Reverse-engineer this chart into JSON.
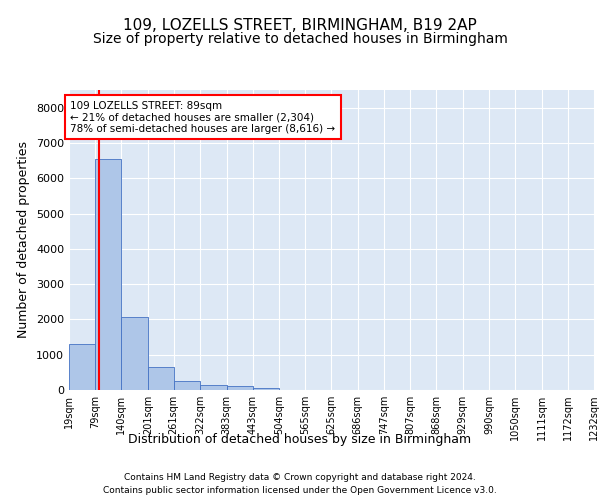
{
  "title1": "109, LOZELLS STREET, BIRMINGHAM, B19 2AP",
  "title2": "Size of property relative to detached houses in Birmingham",
  "xlabel": "Distribution of detached houses by size in Birmingham",
  "ylabel": "Number of detached properties",
  "footer1": "Contains HM Land Registry data © Crown copyright and database right 2024.",
  "footer2": "Contains public sector information licensed under the Open Government Licence v3.0.",
  "annotation_title": "109 LOZELLS STREET: 89sqm",
  "annotation_line1": "← 21% of detached houses are smaller (2,304)",
  "annotation_line2": "78% of semi-detached houses are larger (8,616) →",
  "bin_edges": [
    19,
    79,
    140,
    201,
    261,
    322,
    383,
    443,
    504,
    565,
    625,
    686,
    747,
    807,
    868,
    929,
    990,
    1050,
    1111,
    1172,
    1232
  ],
  "bar_heights": [
    1300,
    6550,
    2080,
    640,
    250,
    130,
    100,
    70,
    0,
    0,
    0,
    0,
    0,
    0,
    0,
    0,
    0,
    0,
    0,
    0
  ],
  "bar_color": "#aec6e8",
  "bar_edge_color": "#4472c4",
  "red_line_x": 89,
  "ylim": [
    0,
    8500
  ],
  "yticks": [
    0,
    1000,
    2000,
    3000,
    4000,
    5000,
    6000,
    7000,
    8000
  ],
  "bg_color": "#dde8f5",
  "grid_color": "#ffffff",
  "title1_fontsize": 11,
  "title2_fontsize": 10,
  "tick_label_fontsize": 7,
  "ylabel_fontsize": 9,
  "xlabel_fontsize": 9,
  "footer_fontsize": 6.5,
  "annotation_fontsize": 7.5
}
